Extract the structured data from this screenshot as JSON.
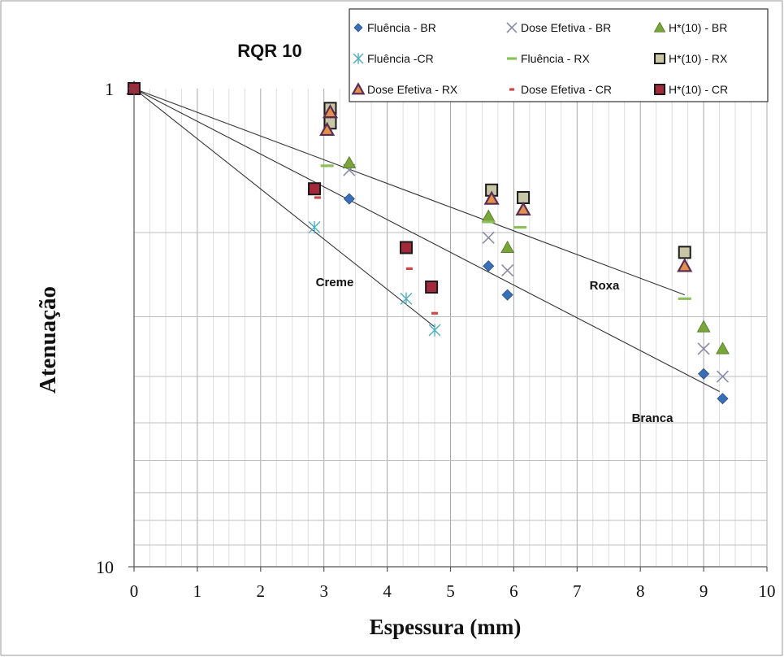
{
  "chart_data": {
    "type": "scatter",
    "title": "RQR 10",
    "xlabel": "Espessura (mm)",
    "ylabel": "Atenuação",
    "xlim": [
      0,
      10
    ],
    "ylim": [
      1,
      10
    ],
    "y_scale": "log",
    "y_reversed": true,
    "x_ticks": [
      "0",
      "1",
      "2",
      "3",
      "4",
      "5",
      "6",
      "7",
      "8",
      "9",
      "10"
    ],
    "y_ticks": [
      "1",
      "10"
    ],
    "grid": true,
    "legend_position": "top-right",
    "series": [
      {
        "name": "Fluência - BR",
        "marker": "diamond",
        "color": "#3A6EB5",
        "points": [
          [
            0,
            1
          ],
          [
            3.4,
            1.7
          ],
          [
            5.6,
            2.35
          ],
          [
            5.9,
            2.7
          ],
          [
            9.0,
            3.95
          ],
          [
            9.3,
            4.45
          ]
        ]
      },
      {
        "name": "Dose Efetiva - BR",
        "marker": "x",
        "color": "#8A8AA8",
        "points": [
          [
            0,
            1
          ],
          [
            3.4,
            1.48
          ],
          [
            5.6,
            2.05
          ],
          [
            5.9,
            2.4
          ],
          [
            9.0,
            3.5
          ],
          [
            9.3,
            4.0
          ]
        ]
      },
      {
        "name": "H*(10) - BR",
        "marker": "triangle",
        "color": "#7AA53B",
        "points": [
          [
            0,
            1
          ],
          [
            3.4,
            1.43
          ],
          [
            5.6,
            1.85
          ],
          [
            5.9,
            2.15
          ],
          [
            9.0,
            3.15
          ],
          [
            9.3,
            3.5
          ]
        ]
      },
      {
        "name": "Fluência -CR",
        "marker": "asterisk",
        "color": "#4FAFC0",
        "points": [
          [
            0,
            1
          ],
          [
            2.85,
            1.95
          ],
          [
            4.3,
            2.75
          ],
          [
            4.75,
            3.2
          ]
        ]
      },
      {
        "name": "Fluência - RX",
        "marker": "dash",
        "color": "#8CC05A",
        "points": [
          [
            0,
            1
          ],
          [
            3.05,
            1.45
          ],
          [
            5.6,
            1.9
          ],
          [
            6.1,
            1.95
          ],
          [
            8.7,
            2.75
          ]
        ]
      },
      {
        "name": "H*(10) - RX",
        "marker": "square",
        "color": "#C9C6A6",
        "points": [
          [
            0,
            1
          ],
          [
            3.1,
            1.1
          ],
          [
            3.1,
            1.18
          ],
          [
            5.65,
            1.63
          ],
          [
            6.15,
            1.69
          ],
          [
            8.7,
            2.2
          ]
        ]
      },
      {
        "name": "Dose Efetiva - RX",
        "marker": "triangle",
        "color": "#E3904A",
        "points": [
          [
            0,
            1
          ],
          [
            3.1,
            1.12
          ],
          [
            3.05,
            1.22
          ],
          [
            5.65,
            1.7
          ],
          [
            6.15,
            1.79
          ],
          [
            8.7,
            2.35
          ]
        ]
      },
      {
        "name": "Dose Efetiva - CR",
        "marker": "dash",
        "color": "#D04545",
        "points": [
          [
            0,
            1
          ],
          [
            2.9,
            1.69
          ],
          [
            4.35,
            2.38
          ],
          [
            4.75,
            2.95
          ]
        ]
      },
      {
        "name": "H*(10) - CR",
        "marker": "square",
        "color": "#A3283A",
        "points": [
          [
            0,
            1
          ],
          [
            2.85,
            1.62
          ],
          [
            4.3,
            2.15
          ],
          [
            4.7,
            2.6
          ]
        ]
      }
    ],
    "trendlines": [
      {
        "label": "Creme",
        "from": [
          0,
          1
        ],
        "to": [
          4.75,
          3.15
        ]
      },
      {
        "label": "Branca",
        "from": [
          0,
          1
        ],
        "to": [
          9.25,
          4.3
        ]
      },
      {
        "label": "Roxa",
        "from": [
          0,
          1
        ],
        "to": [
          8.7,
          2.7
        ]
      }
    ]
  }
}
